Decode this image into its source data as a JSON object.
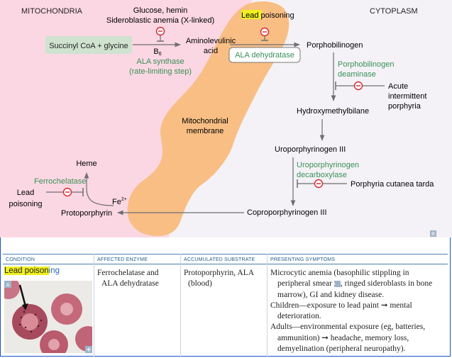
{
  "diagram": {
    "mitochondria": "MITOCHONDRIA",
    "cytoplasm": "CYTOPLASM",
    "succinyl": "Succinyl CoA + glycine",
    "glucose_hemin": "Glucose, hemin",
    "sideroblastic": "Sideroblastic anemia (X-linked)",
    "b6": "B",
    "b6_sub": "6",
    "ala_synthase": "ALA synthase",
    "rate_limiting": "(rate-limiting step)",
    "aminolevulinic": "Aminolevulinic",
    "acid": "acid",
    "lead_poisoning_top": "Lead poisoning",
    "ala_dehydratase": "ALA dehydratase",
    "porphobilinogen": "Porphobilinogen",
    "pbg_deaminase_1": "Porphobilinogen",
    "pbg_deaminase_2": "deaminase",
    "aip_1": "Acute",
    "aip_2": "intermittent",
    "aip_3": "porphyria",
    "hmb": "Hydroxymethylbilane",
    "membrane_1": "Mitochondrial",
    "membrane_2": "membrane",
    "uro3": "Uroporphyrinogen III",
    "uro_decarb_1": "Uroporphyrinogen",
    "uro_decarb_2": "decarboxylase",
    "pct": "Porphyria cutanea tarda",
    "copro3": "Coproporphyrinogen III",
    "protoporphyrin": "Protoporphyrin",
    "heme": "Heme",
    "ferrochelatase": "Ferrochelatase",
    "fe": "Fe",
    "fe_sup": "2+",
    "lead_1": "Lead",
    "lead_2": "poisoning",
    "corner_tag": "B"
  },
  "table": {
    "headers": {
      "condition": "CONDITION",
      "enzyme": "AFFECTED ENZYME",
      "substrate": "ACCUMULATED SUBSTRATE",
      "symptoms": "PRESENTING SYMPTOMS"
    },
    "condition_hl": "Lead poison",
    "condition_rest": "ing",
    "image_tag": "A",
    "enzyme_1": "Ferrochelatase and",
    "enzyme_2": "ALA dehydratase",
    "substrate_1": "Protoporphyrin, ALA",
    "substrate_2": "(blood)",
    "sym1_a": "Microcytic anemia (basophilic stippling in peripheral smear ",
    "sym1_tag": "A",
    "sym1_b": ", ringed sideroblasts in bone marrow), GI and kidney disease.",
    "sym2": "Children—exposure to lead paint ➞ mental deterioration.",
    "sym3": "Adults—environmental exposure (eg, batteries, ammunition) ➞ headache, memory loss, demyelination (peripheral neuropathy)."
  },
  "colors": {
    "mito_bg": "#fbd7e3",
    "cyto_bg": "#f4f2f6",
    "membrane": "#f8be84",
    "enzyme_green": "#3a8f58",
    "inhibit_red": "#d7262e",
    "highlight": "#f0f01e"
  }
}
